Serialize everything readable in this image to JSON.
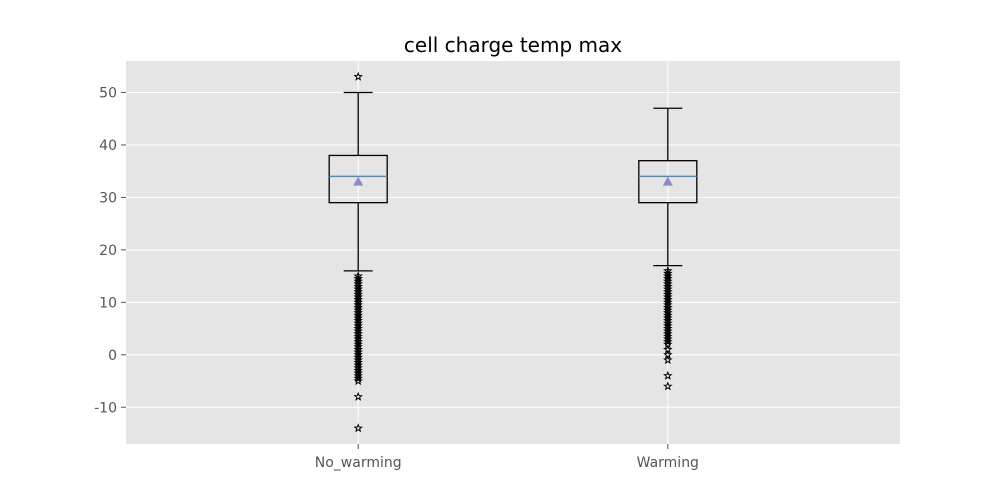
{
  "chart_data": {
    "type": "box",
    "title": "cell charge temp max",
    "xlabel": "",
    "ylabel": "",
    "ylim": [
      -17,
      56
    ],
    "yticks": [
      50,
      40,
      30,
      20,
      10,
      0,
      -10
    ],
    "grid": true,
    "background": "#e5e5e5",
    "box_edge_color": "#000000",
    "median_color": "#4c8fbf",
    "mean_marker_color": "#8f88c9",
    "mean_marker": "triangle",
    "flier_marker": "star",
    "categories": [
      "No_warming",
      "Warming"
    ],
    "boxes": [
      {
        "label": "No_warming",
        "whisker_low": 16,
        "q1": 29,
        "median": 34,
        "q3": 38,
        "whisker_high": 50,
        "mean": 33,
        "outliers": [
          53,
          15,
          14.5,
          14,
          13.5,
          13,
          12.5,
          12,
          11.5,
          11,
          10.5,
          10,
          9.5,
          9,
          8.5,
          8,
          7.5,
          7,
          6.5,
          6,
          5.5,
          5,
          4.5,
          4,
          3.5,
          3,
          2.5,
          2,
          1.5,
          1,
          0.5,
          0,
          -0.5,
          -1,
          -1.5,
          -2,
          -2.5,
          -3,
          -3.5,
          -4,
          -4.5,
          -5,
          -8,
          -14
        ]
      },
      {
        "label": "Warming",
        "whisker_low": 17,
        "q1": 29,
        "median": 34,
        "q3": 37,
        "whisker_high": 47,
        "mean": 33,
        "outliers": [
          16,
          15.5,
          15,
          14.5,
          14,
          13.5,
          13,
          12.5,
          12,
          11.5,
          11,
          10.5,
          10,
          9.5,
          9,
          8.5,
          8,
          7.5,
          7,
          6.5,
          6,
          5.5,
          5,
          4.5,
          4,
          3.5,
          3,
          2.5,
          2,
          1,
          0,
          -1,
          -4,
          -6
        ]
      }
    ]
  }
}
